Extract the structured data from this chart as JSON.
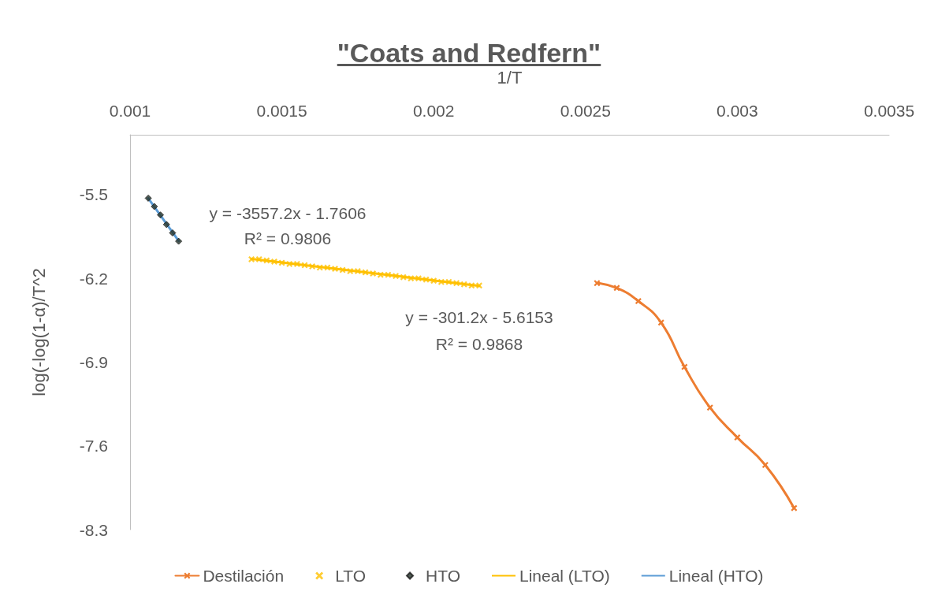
{
  "chart_data": {
    "type": "scatter",
    "title": "\"Coats and Redfern\"",
    "xlabel": "1/T",
    "ylabel": "log(-log(1-α)/T^2",
    "xlim": [
      0.001,
      0.0035
    ],
    "xticks": [
      0.001,
      0.0015,
      0.002,
      0.0025,
      0.003,
      0.0035
    ],
    "ylim": [
      -8.3,
      -5.0
    ],
    "yticks": [
      -8.3,
      -7.6,
      -6.9,
      -6.2,
      -5.5
    ],
    "grid": false,
    "legend": "bottom",
    "series": [
      {
        "name": "Destilación",
        "type": "line",
        "marker": "cross",
        "color": "#ed7d31",
        "x": [
          0.002538,
          0.002603,
          0.002674,
          0.002749,
          0.002826,
          0.00291,
          0.003,
          0.003092,
          0.003187
        ],
        "values": [
          -6.24,
          -6.28,
          -6.39,
          -6.57,
          -6.94,
          -7.28,
          -7.53,
          -7.76,
          -8.12
        ]
      },
      {
        "name": "LTO",
        "marker": "cross",
        "color": "#ffc000",
        "x": [
          0.0014,
          0.001425,
          0.00145,
          0.001475,
          0.0015,
          0.001525,
          0.00155,
          0.001575,
          0.0016,
          0.001625,
          0.00165,
          0.001675,
          0.0017,
          0.001725,
          0.00175,
          0.001775,
          0.0018,
          0.001825,
          0.00185,
          0.001875,
          0.0019,
          0.001925,
          0.00195,
          0.001975,
          0.002,
          0.002025,
          0.00205,
          0.002075,
          0.0021,
          0.002125,
          0.00215
        ],
        "values": [
          -6.04,
          -6.04,
          -6.05,
          -6.06,
          -6.07,
          -6.08,
          -6.08,
          -6.09,
          -6.1,
          -6.11,
          -6.11,
          -6.12,
          -6.13,
          -6.14,
          -6.14,
          -6.15,
          -6.16,
          -6.17,
          -6.17,
          -6.18,
          -6.19,
          -6.2,
          -6.2,
          -6.21,
          -6.22,
          -6.23,
          -6.23,
          -6.24,
          -6.25,
          -6.26,
          -6.26
        ]
      },
      {
        "name": "HTO",
        "marker": "diamond",
        "color": "#25352a",
        "x": [
          0.00106,
          0.00108,
          0.0011,
          0.00112,
          0.00114,
          0.00116
        ],
        "values": [
          -5.53,
          -5.6,
          -5.67,
          -5.75,
          -5.82,
          -5.89
        ]
      },
      {
        "name": "Lineal (LTO)",
        "type": "line",
        "marker": "none",
        "color": "#ffc000",
        "x": [
          0.0014,
          0.00215
        ],
        "values": [
          -6.037,
          -6.263
        ]
      },
      {
        "name": "Lineal (HTO)",
        "type": "line",
        "marker": "none",
        "color": "#5b9bd5",
        "x": [
          0.00106,
          0.00116
        ],
        "values": [
          -5.531,
          -5.887
        ]
      }
    ],
    "annotations": [
      "y = -3557.2x - 1.7606",
      "R² = 0.9806",
      "y = -301.2x - 5.6153",
      "R² = 0.9868"
    ]
  }
}
